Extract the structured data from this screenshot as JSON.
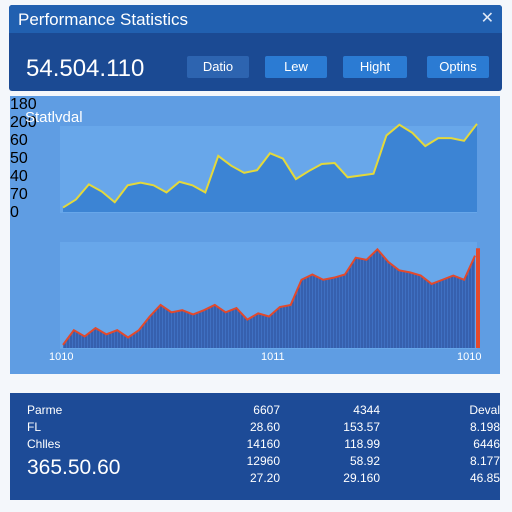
{
  "header": {
    "title": "Performance Statistics"
  },
  "toolbar": {
    "value": "54.504.110",
    "buttons": [
      "Datio",
      "Lew",
      "Hight",
      "Optins"
    ]
  },
  "panel": {
    "tab": "Statlvdal"
  },
  "chart_data": [
    {
      "type": "area",
      "y_labels": [
        "180",
        "200",
        "60"
      ],
      "ylim": [
        0,
        100
      ],
      "line_color": "#e4d93b",
      "fill_color": "#3c84d4",
      "values": [
        5,
        14,
        31,
        23,
        11,
        30,
        33,
        30,
        22,
        34,
        30,
        22,
        63,
        52,
        44,
        47,
        66,
        60,
        37,
        46,
        54,
        55,
        39,
        41,
        43,
        86,
        98,
        89,
        74,
        83,
        83,
        80,
        99
      ]
    },
    {
      "type": "area",
      "y_labels": [
        "50",
        "40",
        "70",
        "0"
      ],
      "x_labels": [
        "1010",
        "1011",
        "1010"
      ],
      "ylim": [
        0,
        100
      ],
      "line_color": "#e2492c",
      "fill_color": "#3f70c2",
      "values": [
        3,
        17,
        11,
        19,
        13,
        17,
        10,
        17,
        30,
        41,
        34,
        36,
        32,
        36,
        41,
        34,
        38,
        27,
        33,
        30,
        39,
        41,
        65,
        70,
        65,
        67,
        70,
        86,
        84,
        94,
        82,
        74,
        72,
        69,
        61,
        65,
        69,
        65,
        88
      ],
      "highlight": 95
    }
  ],
  "table": {
    "labels": [
      "Parme",
      "FL",
      "Chlles"
    ],
    "total": "365.50.60",
    "columns": [
      [
        "6607",
        "28.60",
        "14160",
        "12960",
        "27.20"
      ],
      [
        "4344",
        "153.57",
        "118.99",
        "58.92",
        "29.160"
      ],
      [
        "Deval",
        "8.198",
        "6446",
        "8.177",
        "46.85"
      ]
    ]
  }
}
